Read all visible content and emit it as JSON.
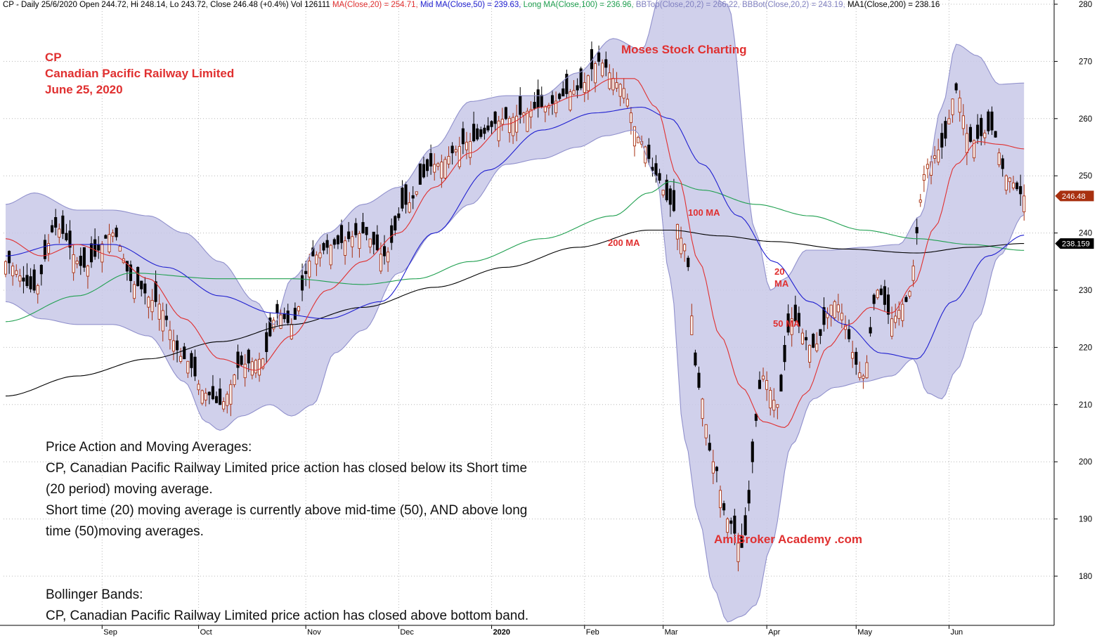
{
  "header": {
    "symbol_line": "CP - Daily 25/6/2020 Open 244.72, Hi 248.14, Lo 243.72, Close 246.48 (+0.4%) Vol 126111",
    "ma20": "MA(Close,20) = 254.71,",
    "ma50": "Mid MA(Close,50) = 239.63,",
    "ma100": "Long MA(Close,100) = 236.96,",
    "bbtop": "BBTop(Close,20,2) = 266.22,",
    "bbbot": "BBBot(Close,20,2) = 243.19,",
    "ma200": "MA1(Close,200) = 238.16",
    "colors": {
      "ma20": "#e03030",
      "ma50": "#2020d0",
      "ma100": "#20a050",
      "bbtop": "#8080c0",
      "bbbot": "#8080c0",
      "ma200": "#000000"
    }
  },
  "title": {
    "line1": "CP",
    "line2": "Canadian Pacific Railway Limited",
    "line3": "June 25, 2020"
  },
  "watermark_top": "Moses Stock Charting",
  "watermark_bottom": "AmiBroker Academy .com",
  "annotations": {
    "ma100": "100 MA",
    "ma200": "200 MA",
    "ma20_a": "20",
    "ma20_b": "MA",
    "ma50": "50 MA"
  },
  "notes": {
    "pa_title": "Price Action and Moving Averages:",
    "pa_line1": "CP, Canadian Pacific Railway Limited price action has closed below its Short time",
    "pa_line2": "(20 period) moving average.",
    "pa_line3": "Short time (20) moving average is currently above mid-time (50), AND above long",
    "pa_line4": "time (50)moving averages.",
    "bb_title": "Bollinger Bands:",
    "bb_line1": "CP, Canadian Pacific Railway Limited price action has closed above bottom band."
  },
  "chart_data": {
    "type": "line",
    "description_type": "candlestick with moving averages and bollinger bands",
    "ylim": [
      171,
      281
    ],
    "y_ticks": [
      180,
      190,
      200,
      210,
      220,
      230,
      240,
      250,
      260,
      270,
      280
    ],
    "x_month_labels": [
      {
        "label": "Sep",
        "bar": 27
      },
      {
        "label": "Oct",
        "bar": 54
      },
      {
        "label": "Nov",
        "bar": 84
      },
      {
        "label": "Dec",
        "bar": 110
      },
      {
        "label": "2020",
        "bar": 136
      },
      {
        "label": "Feb",
        "bar": 162
      },
      {
        "label": "Mar",
        "bar": 184
      },
      {
        "label": "Apr",
        "bar": 213
      },
      {
        "label": "May",
        "bar": 238
      },
      {
        "label": "Jun",
        "bar": 264
      }
    ],
    "bar_count": 286,
    "last_price_label": "246.48",
    "ma200_label": "238.159",
    "last_price_color": "#a83010",
    "up_color": "#a83010",
    "down_color": "#000000",
    "band_fill": "#c8c8e8",
    "close_keypoints": [
      [
        0,
        235
      ],
      [
        8,
        230
      ],
      [
        14,
        241
      ],
      [
        22,
        234
      ],
      [
        30,
        240
      ],
      [
        36,
        231
      ],
      [
        42,
        228
      ],
      [
        50,
        218
      ],
      [
        56,
        212
      ],
      [
        60,
        210
      ],
      [
        66,
        217
      ],
      [
        72,
        218
      ],
      [
        76,
        226
      ],
      [
        80,
        224
      ],
      [
        86,
        236
      ],
      [
        92,
        238
      ],
      [
        100,
        240
      ],
      [
        106,
        236
      ],
      [
        112,
        245
      ],
      [
        120,
        252
      ],
      [
        130,
        256
      ],
      [
        140,
        260
      ],
      [
        150,
        262
      ],
      [
        160,
        265
      ],
      [
        166,
        270
      ],
      [
        172,
        266
      ],
      [
        178,
        256
      ],
      [
        182,
        250
      ],
      [
        186,
        245
      ],
      [
        190,
        238
      ],
      [
        194,
        213
      ],
      [
        198,
        200
      ],
      [
        202,
        190
      ],
      [
        206,
        185
      ],
      [
        212,
        215
      ],
      [
        216,
        210
      ],
      [
        220,
        225
      ],
      [
        226,
        220
      ],
      [
        232,
        228
      ],
      [
        240,
        215
      ],
      [
        244,
        230
      ],
      [
        248,
        225
      ],
      [
        252,
        228
      ],
      [
        258,
        252
      ],
      [
        262,
        255
      ],
      [
        266,
        265
      ],
      [
        270,
        256
      ],
      [
        276,
        258
      ],
      [
        280,
        250
      ],
      [
        285,
        246.48
      ]
    ],
    "ma20_keypoints": [
      [
        0,
        239
      ],
      [
        10,
        236
      ],
      [
        20,
        238
      ],
      [
        30,
        236
      ],
      [
        40,
        232
      ],
      [
        50,
        225
      ],
      [
        60,
        218
      ],
      [
        70,
        216
      ],
      [
        80,
        222
      ],
      [
        90,
        230
      ],
      [
        100,
        235
      ],
      [
        110,
        240
      ],
      [
        120,
        248
      ],
      [
        130,
        254
      ],
      [
        140,
        259
      ],
      [
        150,
        262
      ],
      [
        160,
        264
      ],
      [
        170,
        267
      ],
      [
        176,
        267
      ],
      [
        182,
        262
      ],
      [
        188,
        250
      ],
      [
        194,
        235
      ],
      [
        200,
        222
      ],
      [
        206,
        213
      ],
      [
        212,
        207
      ],
      [
        218,
        206
      ],
      [
        224,
        212
      ],
      [
        230,
        220
      ],
      [
        236,
        224
      ],
      [
        242,
        227
      ],
      [
        248,
        226
      ],
      [
        254,
        231
      ],
      [
        260,
        241
      ],
      [
        266,
        252
      ],
      [
        272,
        256
      ],
      [
        278,
        255.5
      ],
      [
        285,
        254.71
      ]
    ],
    "ma50_keypoints": [
      [
        0,
        236
      ],
      [
        15,
        238
      ],
      [
        30,
        238
      ],
      [
        45,
        234
      ],
      [
        60,
        229
      ],
      [
        75,
        226
      ],
      [
        90,
        225
      ],
      [
        105,
        228
      ],
      [
        120,
        240
      ],
      [
        135,
        251
      ],
      [
        150,
        258
      ],
      [
        165,
        261
      ],
      [
        178,
        262
      ],
      [
        186,
        260
      ],
      [
        195,
        252
      ],
      [
        205,
        243
      ],
      [
        215,
        235
      ],
      [
        225,
        228
      ],
      [
        235,
        224
      ],
      [
        245,
        219
      ],
      [
        255,
        218
      ],
      [
        265,
        228
      ],
      [
        275,
        236
      ],
      [
        285,
        239.63
      ]
    ],
    "ma100_keypoints": [
      [
        0,
        224.5
      ],
      [
        20,
        229
      ],
      [
        35,
        233
      ],
      [
        60,
        232
      ],
      [
        80,
        232
      ],
      [
        100,
        231
      ],
      [
        115,
        232
      ],
      [
        130,
        235
      ],
      [
        150,
        239
      ],
      [
        170,
        243
      ],
      [
        180,
        247
      ],
      [
        186,
        249
      ],
      [
        195,
        247.5
      ],
      [
        210,
        245
      ],
      [
        225,
        243
      ],
      [
        240,
        240.5
      ],
      [
        255,
        239
      ],
      [
        270,
        238
      ],
      [
        285,
        236.96
      ]
    ],
    "ma200_keypoints": [
      [
        0,
        211.5
      ],
      [
        20,
        215
      ],
      [
        40,
        218
      ],
      [
        60,
        221
      ],
      [
        80,
        224
      ],
      [
        100,
        227
      ],
      [
        120,
        230.5
      ],
      [
        140,
        234
      ],
      [
        160,
        237.5
      ],
      [
        180,
        240.5
      ],
      [
        186,
        240.5
      ],
      [
        200,
        239.5
      ],
      [
        215,
        238.5
      ],
      [
        235,
        237.2
      ],
      [
        255,
        236.5
      ],
      [
        270,
        237.5
      ],
      [
        285,
        238.16
      ]
    ],
    "bbtop_keypoints": [
      [
        0,
        245
      ],
      [
        8,
        247
      ],
      [
        20,
        244
      ],
      [
        30,
        244
      ],
      [
        40,
        243
      ],
      [
        50,
        240
      ],
      [
        60,
        235
      ],
      [
        70,
        228
      ],
      [
        75,
        224
      ],
      [
        80,
        232
      ],
      [
        90,
        240
      ],
      [
        100,
        245
      ],
      [
        110,
        248
      ],
      [
        120,
        255
      ],
      [
        130,
        263
      ],
      [
        140,
        264
      ],
      [
        150,
        264
      ],
      [
        160,
        268
      ],
      [
        170,
        274
      ],
      [
        178,
        272
      ],
      [
        184,
        283
      ],
      [
        190,
        283
      ],
      [
        196,
        282
      ],
      [
        202,
        280
      ],
      [
        210,
        240
      ],
      [
        214,
        230
      ],
      [
        218,
        232
      ],
      [
        224,
        237
      ],
      [
        230,
        237
      ],
      [
        240,
        237.5
      ],
      [
        250,
        238
      ],
      [
        256,
        243
      ],
      [
        262,
        262
      ],
      [
        266,
        273
      ],
      [
        272,
        271
      ],
      [
        278,
        266
      ],
      [
        285,
        266.22
      ]
    ],
    "bbbot_keypoints": [
      [
        0,
        228
      ],
      [
        10,
        225
      ],
      [
        20,
        224
      ],
      [
        30,
        224
      ],
      [
        40,
        222
      ],
      [
        50,
        214
      ],
      [
        56,
        207
      ],
      [
        60,
        205.5
      ],
      [
        66,
        208
      ],
      [
        74,
        210
      ],
      [
        80,
        208
      ],
      [
        86,
        210
      ],
      [
        92,
        219
      ],
      [
        100,
        223
      ],
      [
        110,
        233
      ],
      [
        120,
        240
      ],
      [
        130,
        245
      ],
      [
        140,
        252
      ],
      [
        150,
        253
      ],
      [
        160,
        255
      ],
      [
        168,
        257
      ],
      [
        176,
        258
      ],
      [
        182,
        250
      ],
      [
        186,
        232
      ],
      [
        190,
        204
      ],
      [
        194,
        190
      ],
      [
        198,
        178
      ],
      [
        202,
        172
      ],
      [
        206,
        173
      ],
      [
        210,
        175
      ],
      [
        214,
        185
      ],
      [
        220,
        203
      ],
      [
        226,
        211
      ],
      [
        232,
        213
      ],
      [
        240,
        214
      ],
      [
        248,
        215
      ],
      [
        254,
        218
      ],
      [
        258,
        212
      ],
      [
        262,
        211
      ],
      [
        266,
        216
      ],
      [
        272,
        225
      ],
      [
        278,
        236
      ],
      [
        285,
        243.19
      ]
    ]
  }
}
